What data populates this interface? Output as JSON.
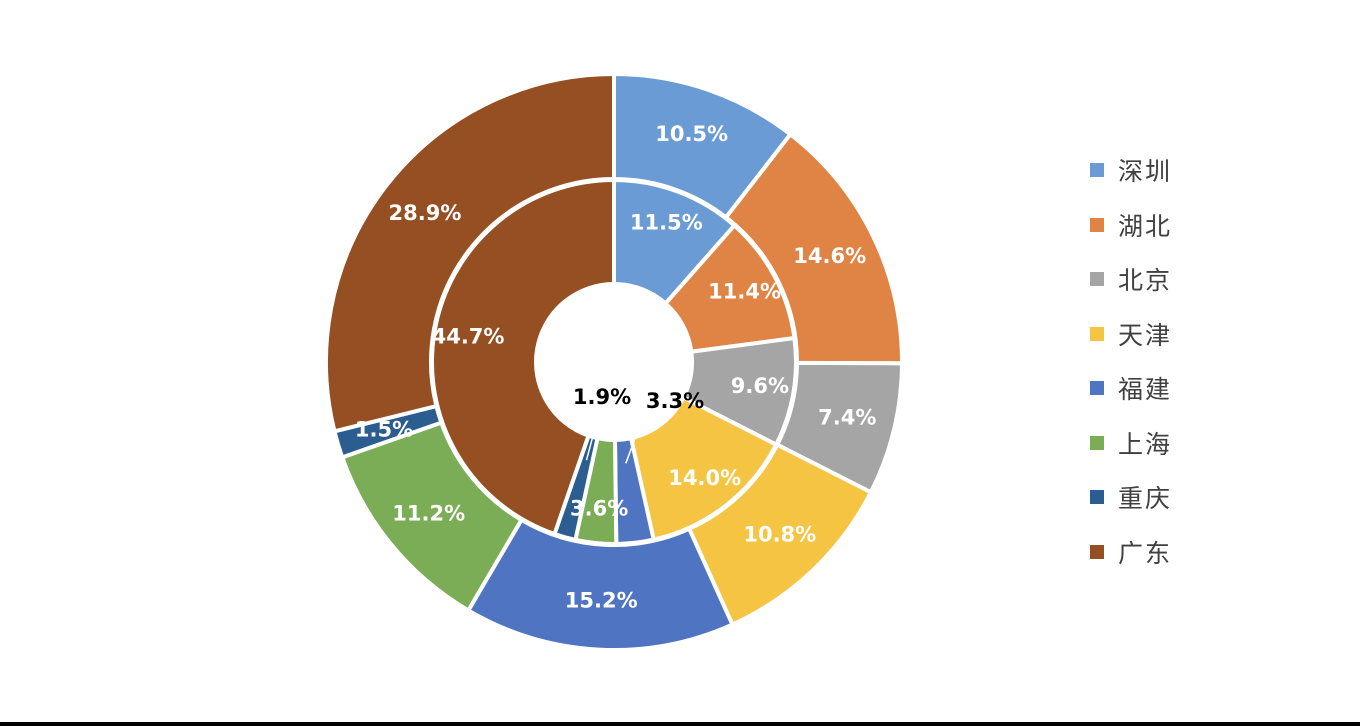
{
  "chart_data": {
    "type": "pie",
    "subtype": "nested-donut",
    "categories": [
      "深圳",
      "湖北",
      "北京",
      "天津",
      "福建",
      "上海",
      "重庆",
      "广东"
    ],
    "colors": [
      "#6A9BD4",
      "#E08446",
      "#A5A5A5",
      "#F6C443",
      "#4F74C2",
      "#7BAC56",
      "#2C5D91",
      "#954F22"
    ],
    "series": [
      {
        "ring": "outer",
        "values": [
          10.5,
          14.6,
          7.4,
          10.8,
          15.2,
          11.2,
          1.5,
          28.9
        ],
        "labels": [
          "10.5%",
          "14.6%",
          "7.4%",
          "10.8%",
          "15.2%",
          "11.2%",
          "1.5%",
          "28.9%"
        ]
      },
      {
        "ring": "inner",
        "values": [
          11.5,
          11.4,
          9.6,
          14.0,
          3.3,
          3.6,
          1.9,
          44.7
        ],
        "labels": [
          "11.5%",
          "11.4%",
          "9.6%",
          "14.0%",
          "3.3%",
          "3.6%",
          "1.9%",
          "44.7%"
        ]
      }
    ],
    "legend_position": "right",
    "title": ""
  }
}
